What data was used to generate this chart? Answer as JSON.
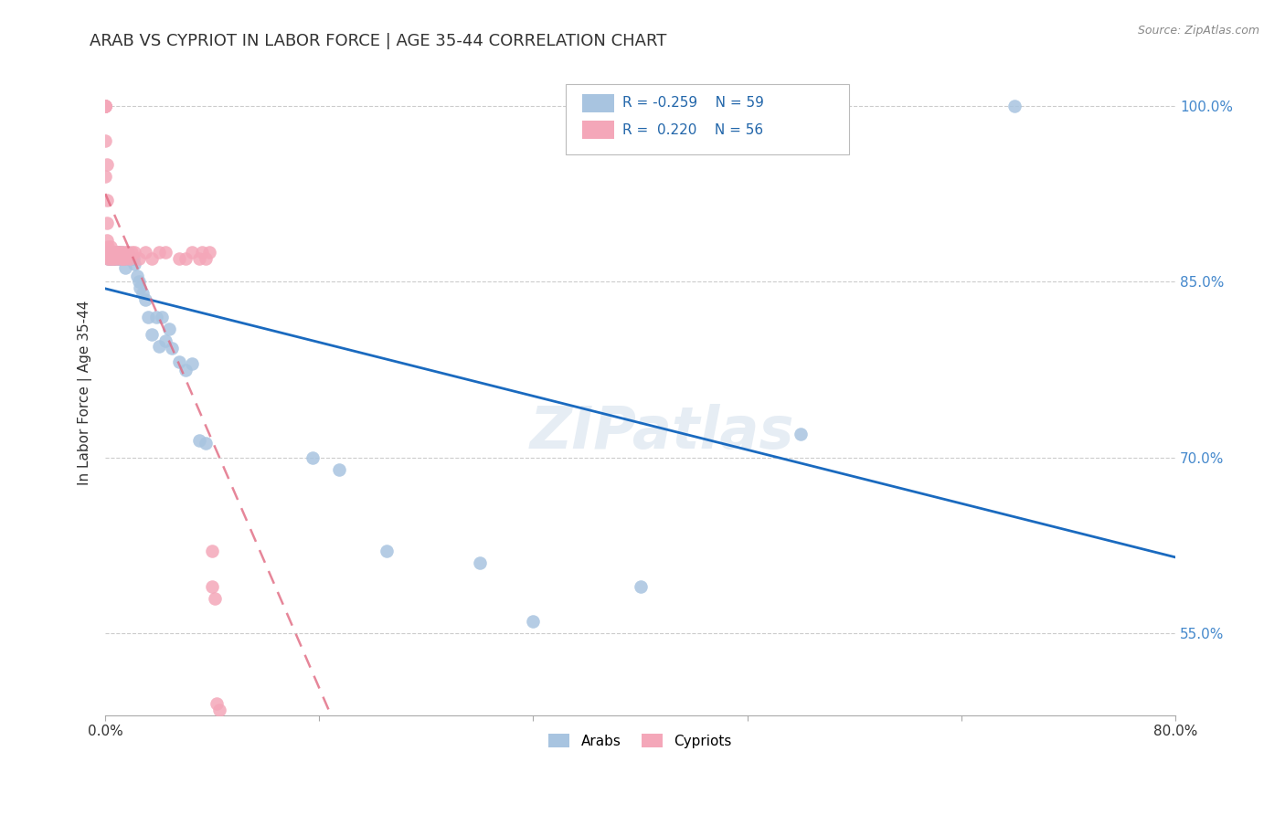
{
  "title": "ARAB VS CYPRIOT IN LABOR FORCE | AGE 35-44 CORRELATION CHART",
  "source": "Source: ZipAtlas.com",
  "ylabel": "In Labor Force | Age 35-44",
  "xlim": [
    0.0,
    0.8
  ],
  "ylim": [
    0.48,
    1.03
  ],
  "yticks": [
    0.55,
    0.7,
    0.85,
    1.0
  ],
  "yticklabels": [
    "55.0%",
    "70.0%",
    "85.0%",
    "100.0%"
  ],
  "xtick_positions": [
    0.0,
    0.16,
    0.32,
    0.48,
    0.64,
    0.8
  ],
  "xticklabels": [
    "0.0%",
    "",
    "",
    "",
    "",
    "80.0%"
  ],
  "arab_color": "#a8c4e0",
  "cypriot_color": "#f4a7b9",
  "arab_line_color": "#1a6abf",
  "cypriot_line_color": "#e06880",
  "grid_color": "#cccccc",
  "background_color": "#ffffff",
  "watermark": "ZIPatlas",
  "legend_r_arab": "-0.259",
  "legend_n_arab": "59",
  "legend_r_cypriot": "0.220",
  "legend_n_cypriot": "56",
  "arab_x": [
    0.001,
    0.001,
    0.001,
    0.002,
    0.002,
    0.002,
    0.003,
    0.003,
    0.004,
    0.004,
    0.004,
    0.005,
    0.005,
    0.006,
    0.006,
    0.007,
    0.008,
    0.008,
    0.009,
    0.01,
    0.01,
    0.011,
    0.012,
    0.013,
    0.014,
    0.015,
    0.016,
    0.017,
    0.018,
    0.019,
    0.02,
    0.021,
    0.022,
    0.024,
    0.025,
    0.026,
    0.028,
    0.03,
    0.032,
    0.035,
    0.038,
    0.04,
    0.042,
    0.045,
    0.048,
    0.05,
    0.055,
    0.06,
    0.065,
    0.07,
    0.075,
    0.155,
    0.175,
    0.21,
    0.28,
    0.32,
    0.4,
    0.52,
    0.68
  ],
  "arab_y": [
    0.875,
    0.875,
    0.875,
    0.875,
    0.87,
    0.875,
    0.87,
    0.875,
    0.87,
    0.875,
    0.87,
    0.875,
    0.87,
    0.875,
    0.87,
    0.87,
    0.875,
    0.87,
    0.875,
    0.87,
    0.875,
    0.87,
    0.875,
    0.87,
    0.87,
    0.862,
    0.87,
    0.875,
    0.87,
    0.87,
    0.87,
    0.87,
    0.865,
    0.855,
    0.85,
    0.845,
    0.84,
    0.835,
    0.82,
    0.805,
    0.82,
    0.795,
    0.82,
    0.8,
    0.81,
    0.793,
    0.782,
    0.775,
    0.78,
    0.715,
    0.712,
    0.7,
    0.69,
    0.62,
    0.61,
    0.56,
    0.59,
    0.72,
    1.0
  ],
  "cypriot_x": [
    0.0,
    0.0,
    0.0,
    0.0,
    0.0,
    0.0,
    0.0,
    0.0,
    0.001,
    0.001,
    0.001,
    0.001,
    0.001,
    0.002,
    0.002,
    0.002,
    0.003,
    0.003,
    0.003,
    0.004,
    0.004,
    0.005,
    0.005,
    0.006,
    0.006,
    0.007,
    0.008,
    0.009,
    0.01,
    0.01,
    0.012,
    0.012,
    0.013,
    0.014,
    0.015,
    0.016,
    0.018,
    0.02,
    0.022,
    0.025,
    0.03,
    0.035,
    0.04,
    0.045,
    0.055,
    0.06,
    0.065,
    0.07,
    0.072,
    0.075,
    0.078,
    0.08,
    0.08,
    0.082,
    0.083,
    0.085
  ],
  "cypriot_y": [
    1.0,
    1.0,
    1.0,
    1.0,
    1.0,
    1.0,
    0.97,
    0.94,
    0.95,
    0.92,
    0.9,
    0.885,
    0.875,
    0.88,
    0.875,
    0.87,
    0.875,
    0.87,
    0.875,
    0.88,
    0.875,
    0.875,
    0.87,
    0.875,
    0.87,
    0.875,
    0.875,
    0.87,
    0.875,
    0.875,
    0.87,
    0.875,
    0.87,
    0.875,
    0.87,
    0.875,
    0.87,
    0.875,
    0.875,
    0.87,
    0.875,
    0.87,
    0.875,
    0.875,
    0.87,
    0.87,
    0.875,
    0.87,
    0.875,
    0.87,
    0.875,
    0.62,
    0.59,
    0.58,
    0.49,
    0.485
  ]
}
